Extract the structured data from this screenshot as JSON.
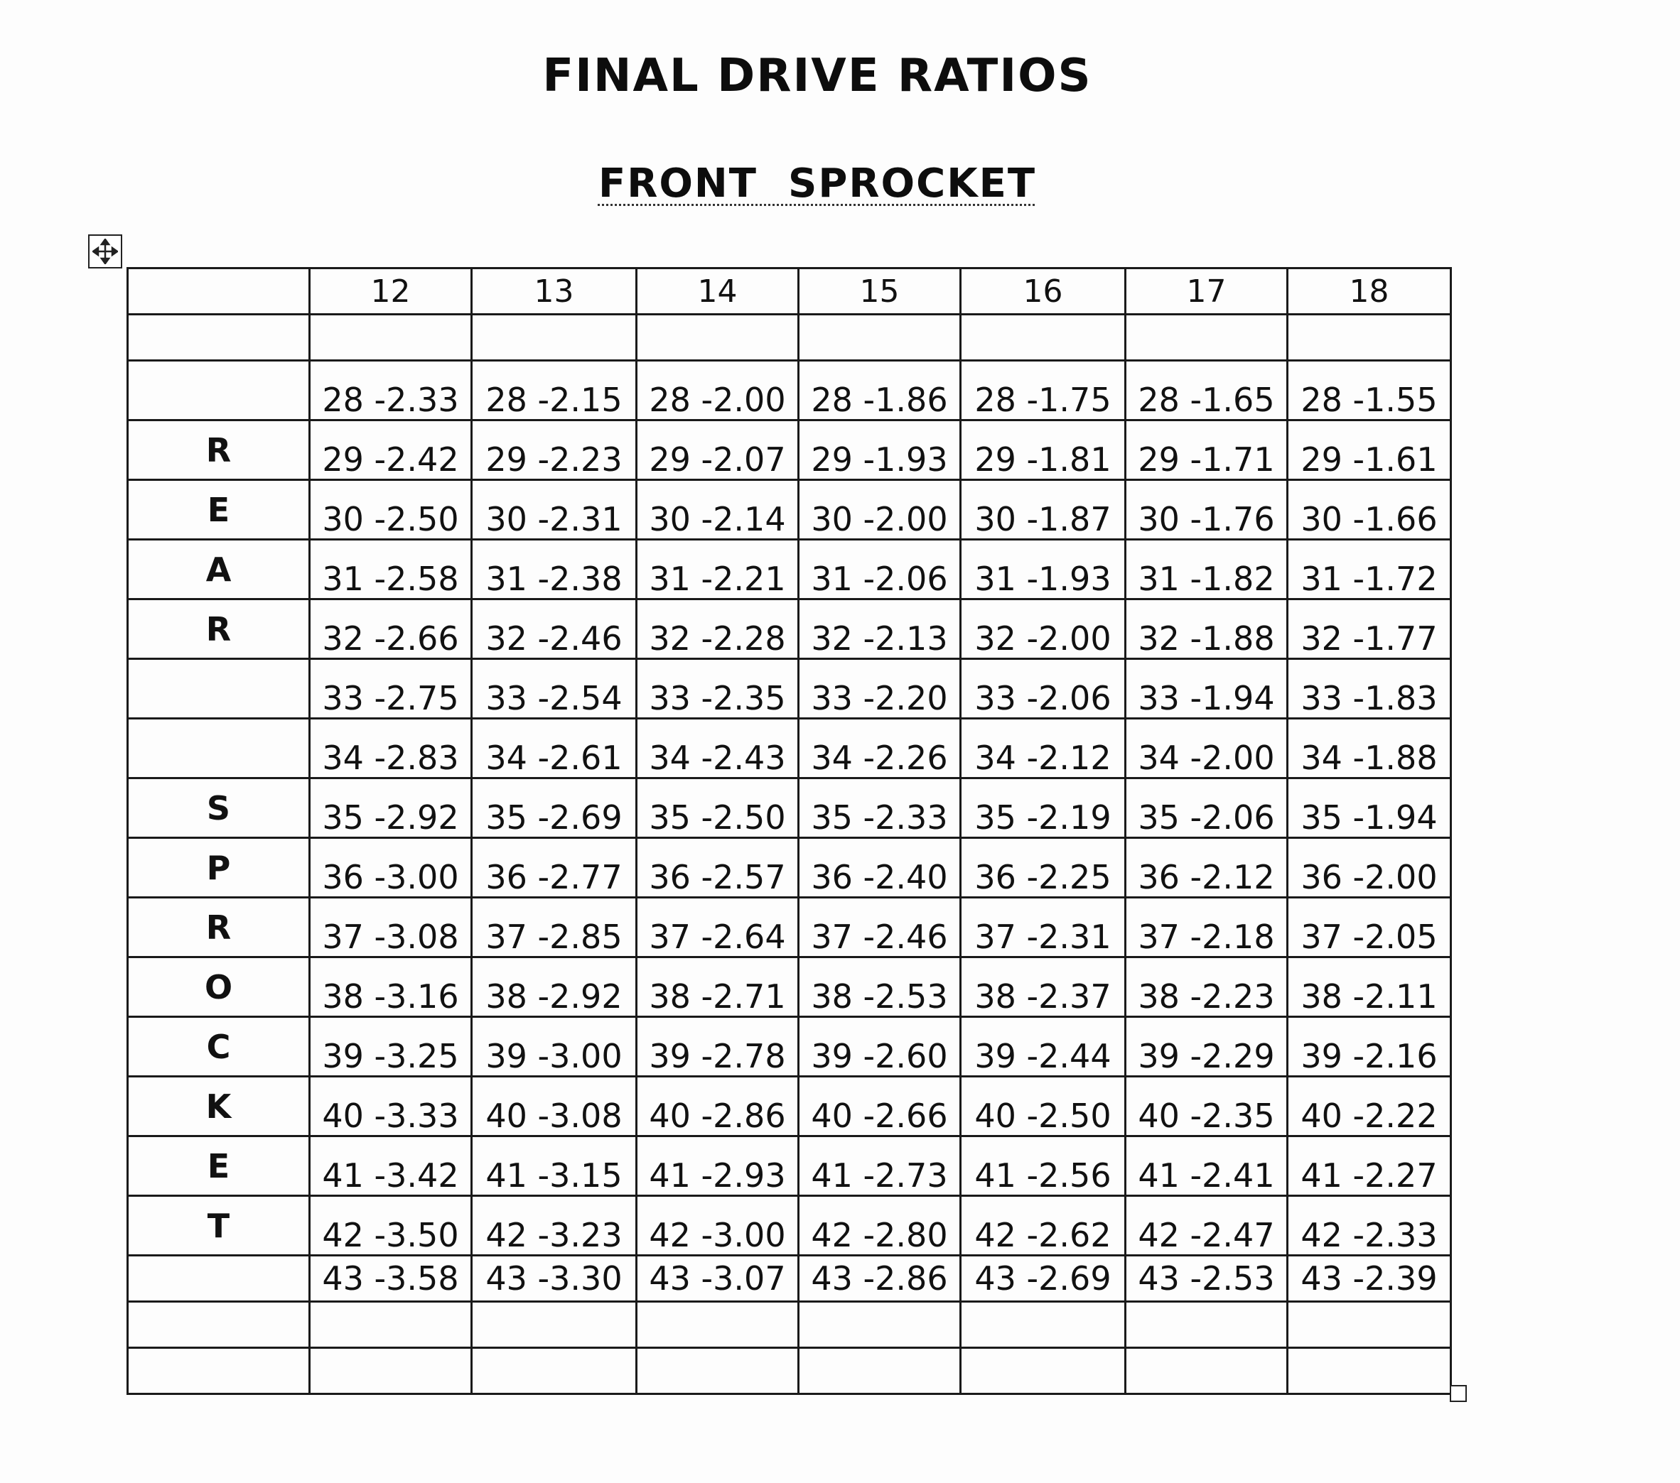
{
  "title": "FINAL DRIVE RATIOS",
  "subtitle": "FRONT  SPROCKET",
  "front_sprockets": [
    "12",
    "13",
    "14",
    "15",
    "16",
    "17",
    "18"
  ],
  "side_label_letters": [
    "",
    "R",
    "E",
    "A",
    "R",
    "",
    "",
    "S",
    "P",
    "R",
    "O",
    "C",
    "K",
    "E",
    "T",
    ""
  ],
  "rows": [
    [
      "28 -2.33",
      "28 -2.15",
      "28 -2.00",
      "28 -1.86",
      "28 -1.75",
      "28 -1.65",
      "28 -1.55"
    ],
    [
      "29 -2.42",
      "29 -2.23",
      "29 -2.07",
      "29 -1.93",
      "29 -1.81",
      "29 -1.71",
      "29 -1.61"
    ],
    [
      "30 -2.50",
      "30 -2.31",
      "30 -2.14",
      "30 -2.00",
      "30 -1.87",
      "30 -1.76",
      "30 -1.66"
    ],
    [
      "31 -2.58",
      "31 -2.38",
      "31 -2.21",
      "31 -2.06",
      "31 -1.93",
      "31 -1.82",
      "31 -1.72"
    ],
    [
      "32 -2.66",
      "32 -2.46",
      "32 -2.28",
      "32 -2.13",
      "32 -2.00",
      "32 -1.88",
      "32 -1.77"
    ],
    [
      "33 -2.75",
      "33 -2.54",
      "33 -2.35",
      "33 -2.20",
      "33 -2.06",
      "33 -1.94",
      "33 -1.83"
    ],
    [
      "34 -2.83",
      "34 -2.61",
      "34 -2.43",
      "34 -2.26",
      "34 -2.12",
      "34 -2.00",
      "34 -1.88"
    ],
    [
      "35 -2.92",
      "35 -2.69",
      "35 -2.50",
      "35 -2.33",
      "35 -2.19",
      "35 -2.06",
      "35 -1.94"
    ],
    [
      "36 -3.00",
      "36 -2.77",
      "36 -2.57",
      "36 -2.40",
      "36 -2.25",
      "36 -2.12",
      "36 -2.00"
    ],
    [
      "37 -3.08",
      "37 -2.85",
      "37 -2.64",
      "37 -2.46",
      "37 -2.31",
      "37 -2.18",
      "37 -2.05"
    ],
    [
      "38 -3.16",
      "38 -2.92",
      "38 -2.71",
      "38 -2.53",
      "38 -2.37",
      "38 -2.23",
      "38 -2.11"
    ],
    [
      "39 -3.25",
      "39 -3.00",
      "39 -2.78",
      "39 -2.60",
      "39 -2.44",
      "39 -2.29",
      "39 -2.16"
    ],
    [
      "40 -3.33",
      "40 -3.08",
      "40 -2.86",
      "40 -2.66",
      "40 -2.50",
      "40 -2.35",
      "40 -2.22"
    ],
    [
      "41 -3.42",
      "41 -3.15",
      "41 -2.93",
      "41 -2.73",
      "41 -2.56",
      "41 -2.41",
      "41 -2.27"
    ],
    [
      "42 -3.50",
      "42 -3.23",
      "42 -3.00",
      "42 -2.80",
      "42 -2.62",
      "42 -2.47",
      "42 -2.33"
    ],
    [
      "43 -3.58",
      "43 -3.30",
      "43 -3.07",
      "43 -2.86",
      "43 -2.69",
      "43 -2.53",
      "43 -2.39"
    ]
  ],
  "icons": {
    "table_move": "move-arrows-icon",
    "table_resize": "resize-handle-icon"
  }
}
